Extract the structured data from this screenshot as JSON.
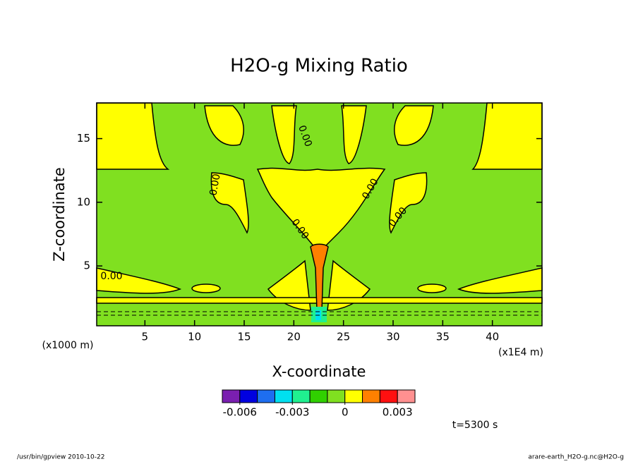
{
  "chart_data": {
    "type": "contour",
    "title": "H2O-g Mixing Ratio",
    "x_label": "X-coordinate",
    "y_label": "Z-coordinate",
    "x_unit_left": "(x1000 m)",
    "x_unit_right": "(x1E4 m)",
    "xlim": [
      0,
      45
    ],
    "xticks": [
      5,
      10,
      15,
      20,
      25,
      30,
      35,
      40
    ],
    "ylim": [
      0.3,
      17.8
    ],
    "yticks": [
      5,
      10,
      15
    ],
    "contour_label": "0.00",
    "colorbar": {
      "bounds": [
        -0.007,
        -0.006,
        -0.005,
        -0.004,
        -0.003,
        -0.002,
        -0.001,
        0,
        0.001,
        0.002,
        0.003,
        0.004
      ],
      "colors": [
        "#7a1fb0",
        "#0000e0",
        "#1e6ef0",
        "#00e0f0",
        "#20f090",
        "#30d000",
        "#80e020",
        "#ffff00",
        "#ff8000",
        "#ff1010",
        "#ff9090"
      ],
      "ticks": [
        -0.006,
        -0.003,
        0,
        0.003
      ]
    },
    "time_label": "t=5300 s",
    "footer_left": "/usr/bin/gpview  2010-10-22",
    "footer_right": "arare-earth_H2O-g.nc@H2O-g"
  }
}
